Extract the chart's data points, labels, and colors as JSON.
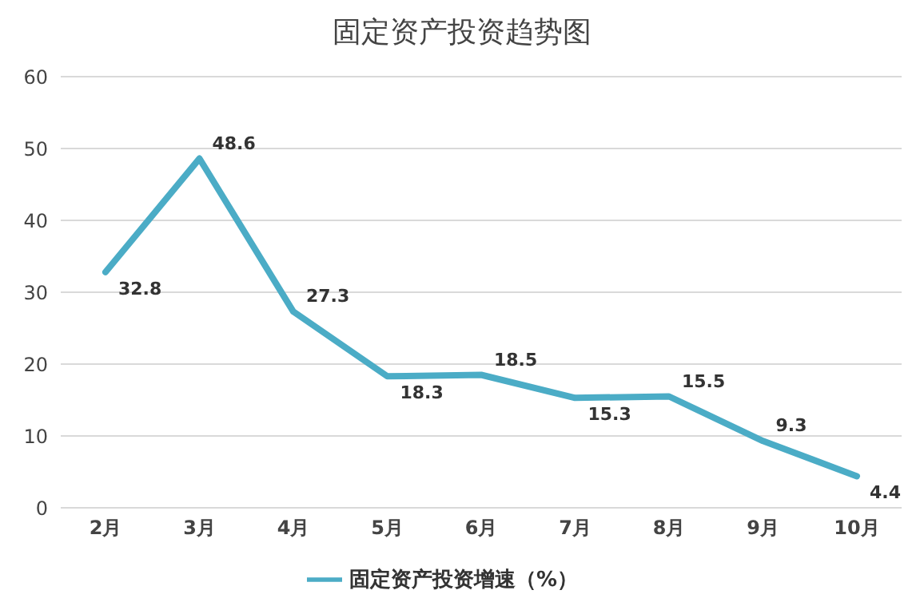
{
  "chart_data": {
    "type": "line",
    "title": "固定资产投资趋势图",
    "categories": [
      "2月",
      "3月",
      "4月",
      "5月",
      "6月",
      "7月",
      "8月",
      "9月",
      "10月"
    ],
    "series": [
      {
        "name": "固定资产投资增速（%）",
        "color": "#4bacc6",
        "values": [
          32.8,
          48.6,
          27.3,
          18.3,
          18.5,
          15.3,
          15.5,
          9.3,
          4.4
        ]
      }
    ],
    "ylim": [
      0,
      60
    ],
    "yticks": [
      0,
      10,
      20,
      30,
      40,
      50,
      60
    ],
    "grid": "y",
    "legend": "bottom",
    "data_labels": true,
    "marker": "none",
    "line_style": "solid"
  }
}
